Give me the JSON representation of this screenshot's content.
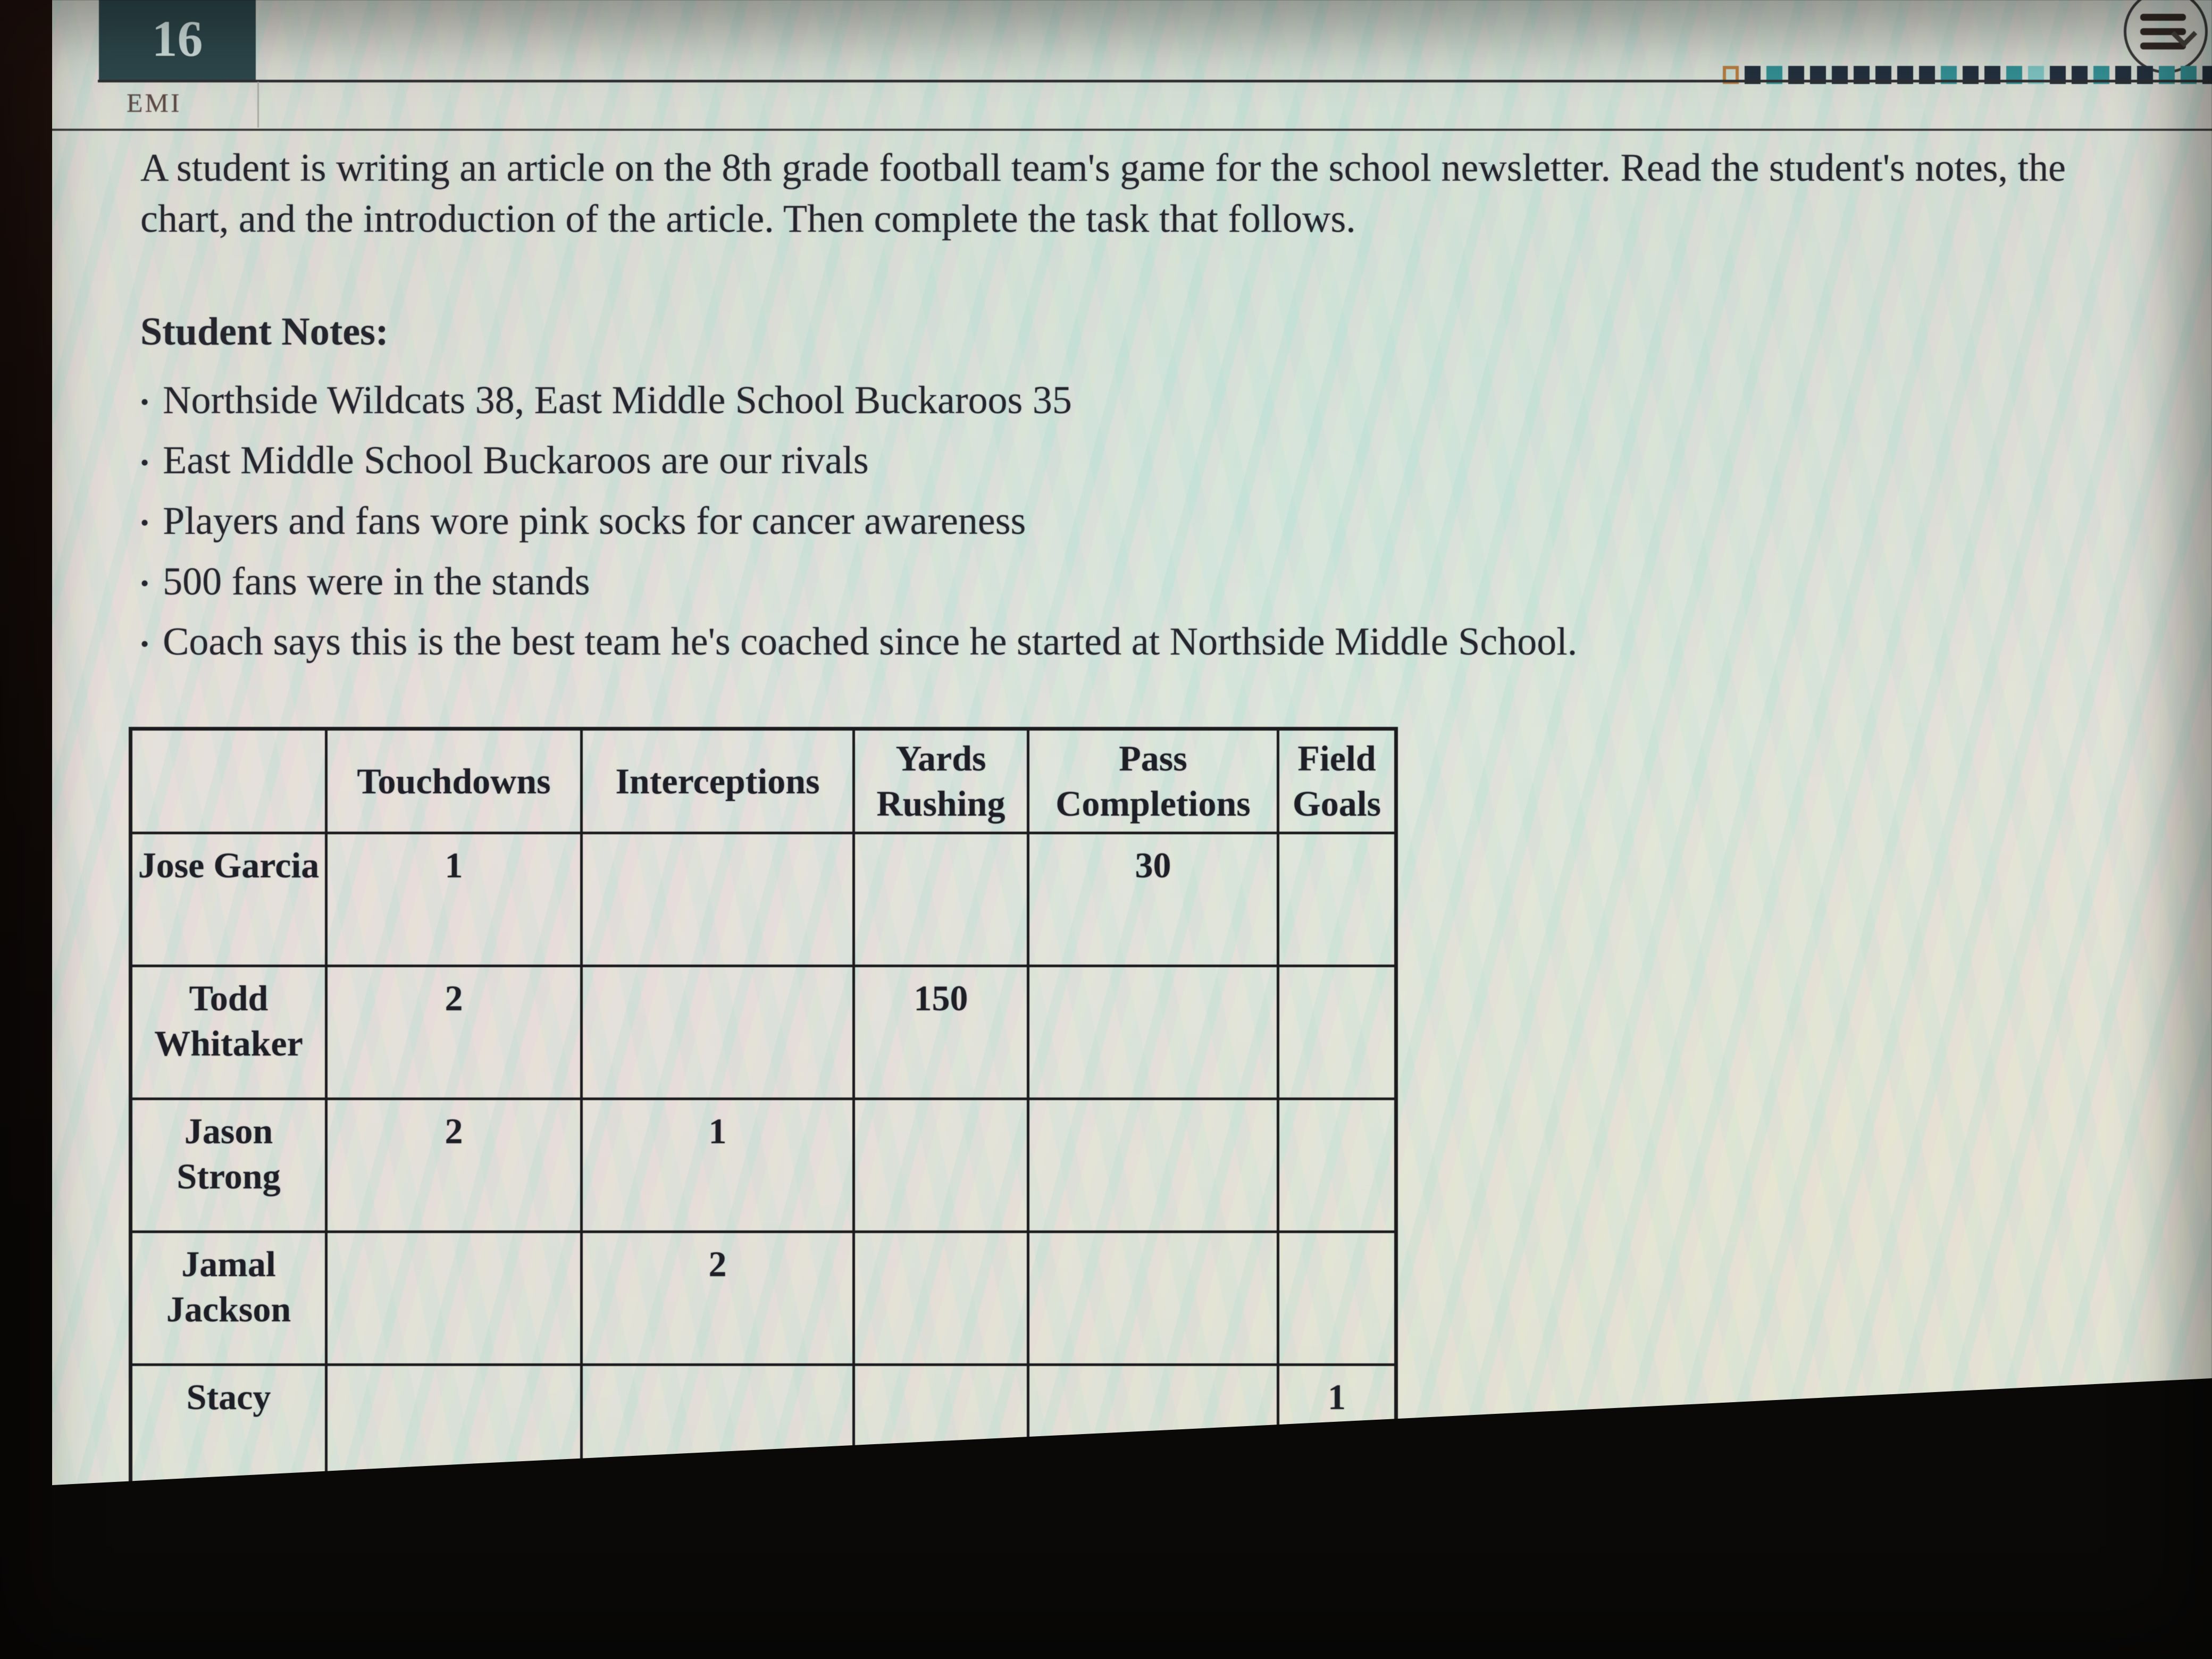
{
  "app": {
    "question_number": "16",
    "section_label": "EMI"
  },
  "menu": {
    "icon": "hamburger-menu-chevron-icon"
  },
  "progress_strip": {
    "colors": {
      "current_outline": "#b97c3e",
      "dark": "#22303e",
      "teal": "#2f8f93",
      "light_teal": "#79c2c0"
    },
    "squares": [
      "current",
      "dark",
      "teal",
      "dark",
      "dark",
      "dark",
      "dark",
      "dark",
      "dark",
      "dark",
      "teal",
      "dark",
      "dark",
      "teal",
      "light",
      "dark",
      "dark",
      "teal",
      "dark",
      "dark",
      "teal",
      "teal",
      "dark",
      "teal",
      "light"
    ]
  },
  "prompt": "A student is writing an article on the 8th grade football team's game for the school newsletter. Read the student's notes, the chart, and the introduction of the article. Then complete the task that follows.",
  "notes": {
    "heading": "Student Notes:",
    "items": [
      "Northside Wildcats 38, East Middle School Buckaroos 35",
      "East Middle School Buckaroos are our rivals",
      "Players and fans wore pink socks for cancer awareness",
      "500 fans were in the stands",
      "Coach says this is the best team he's coached since he started at Northside Middle School."
    ]
  },
  "table": {
    "headers": [
      "",
      "Touchdowns",
      "Interceptions",
      "Yards Rushing",
      "Pass Completions",
      "Field Goals"
    ],
    "rows": [
      {
        "name": "Jose Garcia",
        "values": [
          "1",
          "",
          "",
          "30",
          ""
        ]
      },
      {
        "name": "Todd Whitaker",
        "values": [
          "2",
          "",
          "150",
          "",
          ""
        ]
      },
      {
        "name": "Jason Strong",
        "values": [
          "2",
          "1",
          "",
          "",
          ""
        ]
      },
      {
        "name": "Jamal Jackson",
        "values": [
          "",
          "2",
          "",
          "",
          ""
        ]
      },
      {
        "name": "Stacy",
        "values": [
          "",
          "",
          "",
          "",
          "1"
        ]
      }
    ]
  },
  "colors": {
    "question_badge_bg": "#2c474c",
    "question_badge_text": "#cfe0de",
    "screen_bg": "#dcded6",
    "table_border": "#1b1b1d",
    "body_text": "#24252d"
  }
}
